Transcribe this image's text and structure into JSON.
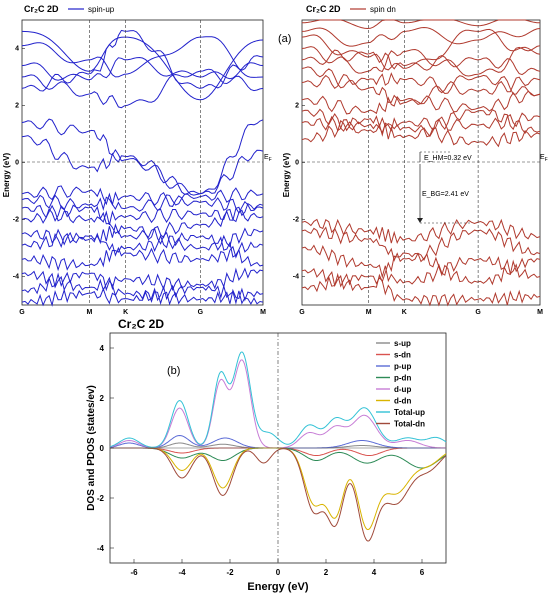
{
  "chart_data": [
    {
      "id": "spin-up",
      "type": "line",
      "title": "Cr₂C 2D",
      "legend": [
        "spin-up"
      ],
      "ylabel": "Energy (eV)",
      "xticks": [
        "G",
        "M",
        "K",
        "G",
        "M"
      ],
      "yticks": [
        "-4",
        "-2",
        "0",
        "2",
        "4"
      ],
      "fermi_label": "E_F",
      "ylim": [
        -5,
        5
      ],
      "color": "#2222cc"
    },
    {
      "id": "spin-dn",
      "type": "line",
      "title": "Cr₂C 2D",
      "legend": [
        "spin dn"
      ],
      "ylabel": "Energy (eV)",
      "xticks": [
        "G",
        "M",
        "K",
        "G",
        "M"
      ],
      "yticks": [
        "-4",
        "-2",
        "0",
        "2"
      ],
      "fermi_label": "E_F",
      "ylim": [
        -5,
        5
      ],
      "color": "#b03a2e",
      "annotations": {
        "hm": "E_HM=0.32 eV",
        "bg": "E_BG=2.41 eV",
        "panel": "(a)"
      }
    },
    {
      "id": "dos",
      "type": "line",
      "title": "Cr₂C 2D",
      "panel": "(b)",
      "xlabel": "Energy (eV)",
      "ylabel": "DOS and PDOS (states/ev)",
      "xticks": [
        "-6",
        "-4",
        "-2",
        "0",
        "2",
        "4",
        "6"
      ],
      "yticks": [
        "-4",
        "-2",
        "0",
        "2",
        "4"
      ],
      "xlim": [
        -7,
        7
      ],
      "ylim": [
        -4.6,
        4.6
      ],
      "series": [
        {
          "name": "s-up",
          "color": "#8a8a8a"
        },
        {
          "name": "s-dn",
          "color": "#d9534f"
        },
        {
          "name": "p-up",
          "color": "#5b6bd6"
        },
        {
          "name": "p-dn",
          "color": "#2e8b57"
        },
        {
          "name": "d-up",
          "color": "#c77dd6"
        },
        {
          "name": "d-dn",
          "color": "#d9b400"
        },
        {
          "name": "Total-up",
          "color": "#33c2d6"
        },
        {
          "name": "Total-dn",
          "color": "#a04a3a"
        }
      ]
    }
  ]
}
